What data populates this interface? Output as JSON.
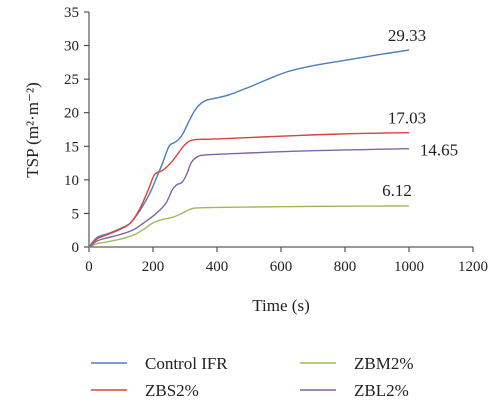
{
  "chart_data": {
    "type": "line",
    "xlabel": "Time (s)",
    "ylabel": "TSP (m²·m⁻²)",
    "xlim": [
      0,
      1200
    ],
    "ylim": [
      0,
      35
    ],
    "xticks": [
      0,
      200,
      400,
      600,
      800,
      1000,
      1200
    ],
    "yticks": [
      0,
      5,
      10,
      15,
      20,
      25,
      30,
      35
    ],
    "grid": false,
    "legend_position": "bottom",
    "series": [
      {
        "name": "Control IFR",
        "color": "#4a7ebb",
        "x": [
          0,
          25,
          60,
          100,
          130,
          160,
          190,
          210,
          230,
          250,
          265,
          280,
          295,
          310,
          330,
          350,
          370,
          400,
          440,
          500,
          560,
          620,
          700,
          800,
          900,
          1000
        ],
        "y": [
          0,
          1.4,
          2.0,
          2.8,
          3.6,
          5.5,
          8.0,
          10.2,
          12.5,
          15.0,
          15.5,
          16.0,
          17.0,
          18.5,
          20.3,
          21.4,
          21.9,
          22.2,
          22.7,
          23.8,
          25.0,
          26.1,
          27.0,
          27.8,
          28.6,
          29.33
        ],
        "end_label": "29.33"
      },
      {
        "name": "ZBS2%",
        "color": "#d9413a",
        "x": [
          0,
          25,
          60,
          100,
          130,
          160,
          185,
          205,
          230,
          255,
          275,
          295,
          315,
          335,
          360,
          400,
          500,
          600,
          700,
          800,
          900,
          1000
        ],
        "y": [
          0,
          1.2,
          1.9,
          2.7,
          3.6,
          5.8,
          8.5,
          10.8,
          11.4,
          12.5,
          13.7,
          15.0,
          15.8,
          16.0,
          16.05,
          16.1,
          16.3,
          16.5,
          16.7,
          16.85,
          16.95,
          17.03
        ],
        "end_label": "17.03"
      },
      {
        "name": "ZBM2%",
        "color": "#9bbb59",
        "x": [
          0,
          25,
          60,
          100,
          140,
          170,
          200,
          230,
          260,
          290,
          310,
          330,
          360,
          400,
          500,
          600,
          700,
          800,
          900,
          1000
        ],
        "y": [
          0,
          0.5,
          0.8,
          1.2,
          1.8,
          2.6,
          3.6,
          4.1,
          4.4,
          5.0,
          5.5,
          5.8,
          5.85,
          5.9,
          5.95,
          6.0,
          6.05,
          6.08,
          6.1,
          6.12
        ],
        "end_label": "6.12"
      },
      {
        "name": "ZBL2%",
        "color": "#8064a2",
        "x": [
          0,
          25,
          60,
          100,
          140,
          180,
          210,
          240,
          260,
          275,
          290,
          305,
          320,
          340,
          360,
          400,
          500,
          600,
          700,
          800,
          900,
          1000
        ],
        "y": [
          0,
          0.9,
          1.4,
          1.9,
          2.6,
          3.9,
          5.0,
          6.5,
          8.5,
          9.3,
          9.6,
          10.8,
          12.6,
          13.5,
          13.7,
          13.8,
          14.0,
          14.2,
          14.35,
          14.45,
          14.55,
          14.65
        ],
        "end_label": "14.65"
      }
    ]
  }
}
